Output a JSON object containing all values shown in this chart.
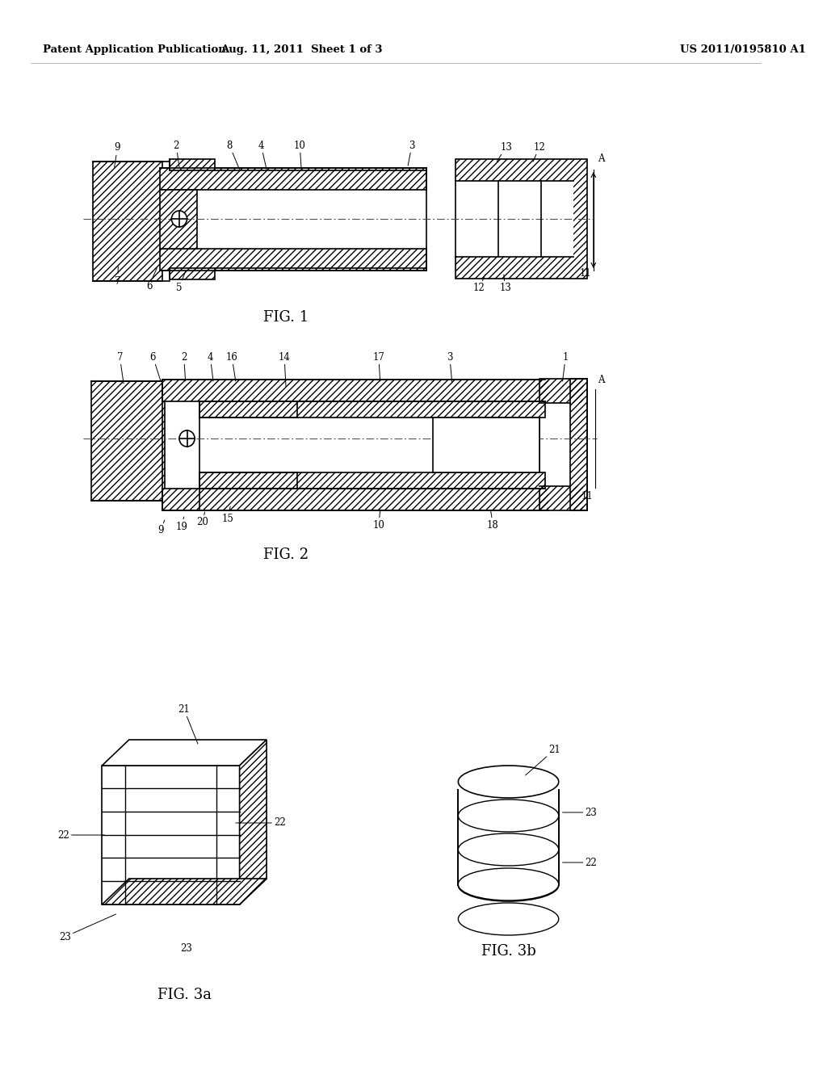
{
  "bg_color": "#ffffff",
  "line_color": "#000000",
  "header_left": "Patent Application Publication",
  "header_mid": "Aug. 11, 2011  Sheet 1 of 3",
  "header_right": "US 2011/0195810 A1",
  "fig1_label": "FIG. 1",
  "fig2_label": "FIG. 2",
  "fig3a_label": "FIG. 3a",
  "fig3b_label": "FIG. 3b",
  "header_fontsize": 9.5,
  "fig_label_fontsize": 13,
  "ann_fontsize": 8.5
}
